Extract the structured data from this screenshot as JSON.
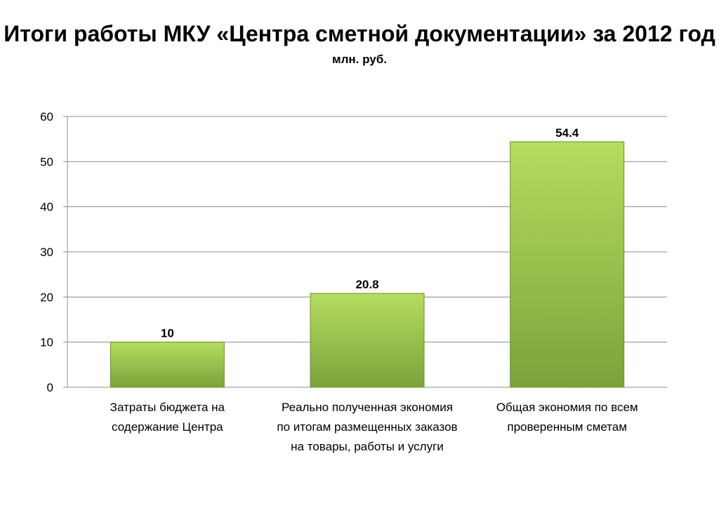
{
  "chart_data": {
    "type": "bar",
    "title": "Итоги работы МКУ «Центра сметной документации» за 2012 год",
    "subtitle": "млн. руб.",
    "categories": [
      "Затраты бюджета на содержание Центра",
      "Реально полученная экономия по итогам размещенных заказов на товары, работы и услуги",
      "Общая экономия по всем проверенным сметам"
    ],
    "values": [
      10,
      20.8,
      54.4
    ],
    "data_labels": [
      "10",
      "20.8",
      "54.4"
    ],
    "ylim": [
      0,
      60
    ],
    "yticks": [
      "0",
      "10",
      "20",
      "30",
      "40",
      "50",
      "60"
    ],
    "grid": true,
    "legend": "none",
    "colors": {
      "bar_light": "#b5dd5f",
      "bar_dark": "#7aa33a",
      "bar_edge": "#6b8f2e",
      "grid": "#8c8c8c",
      "axis": "#8c8c8c"
    }
  }
}
